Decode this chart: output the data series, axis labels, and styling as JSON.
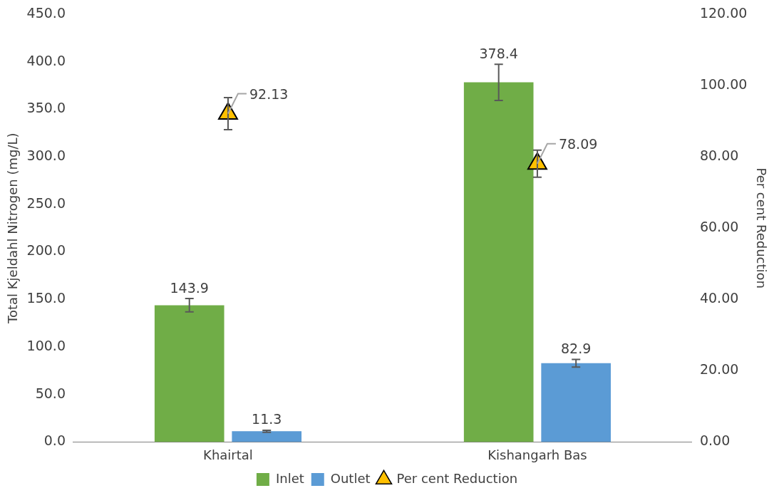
{
  "chart_data": {
    "type": "bar",
    "categories": [
      "Khairtal",
      "Kishangarh Bas"
    ],
    "ylabel": "Total Kjeldahl Nitrogen (mg/L)",
    "y2label": "Per cent Reduction",
    "series": [
      {
        "name": "Inlet",
        "color": "#70ad47",
        "values": [
          143.9,
          378.4
        ],
        "errors": [
          7,
          19
        ]
      },
      {
        "name": "Outlet",
        "color": "#5b9bd5",
        "values": [
          11.3,
          82.9
        ],
        "errors": [
          1,
          4
        ]
      },
      {
        "name": "Per cent Reduction",
        "type": "scatter",
        "axis": "y2",
        "marker": "triangle",
        "color": "#ffc000",
        "values": [
          92.13,
          78.09
        ],
        "errors": [
          4.5,
          3.8
        ]
      }
    ],
    "ylim": [
      0,
      450
    ],
    "yticks": [
      {
        "value": 0,
        "label": "0.0"
      },
      {
        "value": 50,
        "label": "50.0"
      },
      {
        "value": 100,
        "label": "100.0"
      },
      {
        "value": 150,
        "label": "150.0"
      },
      {
        "value": 200,
        "label": "200.0"
      },
      {
        "value": 250,
        "label": "250.0"
      },
      {
        "value": 300,
        "label": "300.0"
      },
      {
        "value": 350,
        "label": "350.0"
      },
      {
        "value": 400,
        "label": "400.0"
      },
      {
        "value": 450,
        "label": "450.0"
      }
    ],
    "y2lim": [
      0,
      120
    ],
    "y2ticks": [
      {
        "value": 0,
        "label": "0.00"
      },
      {
        "value": 20,
        "label": "20.00"
      },
      {
        "value": 40,
        "label": "40.00"
      },
      {
        "value": 60,
        "label": "60.00"
      },
      {
        "value": 80,
        "label": "80.00"
      },
      {
        "value": 100,
        "label": "100.00"
      },
      {
        "value": 120,
        "label": "120.00"
      }
    ],
    "data_labels": true,
    "legend": "bottom",
    "grid": false
  }
}
